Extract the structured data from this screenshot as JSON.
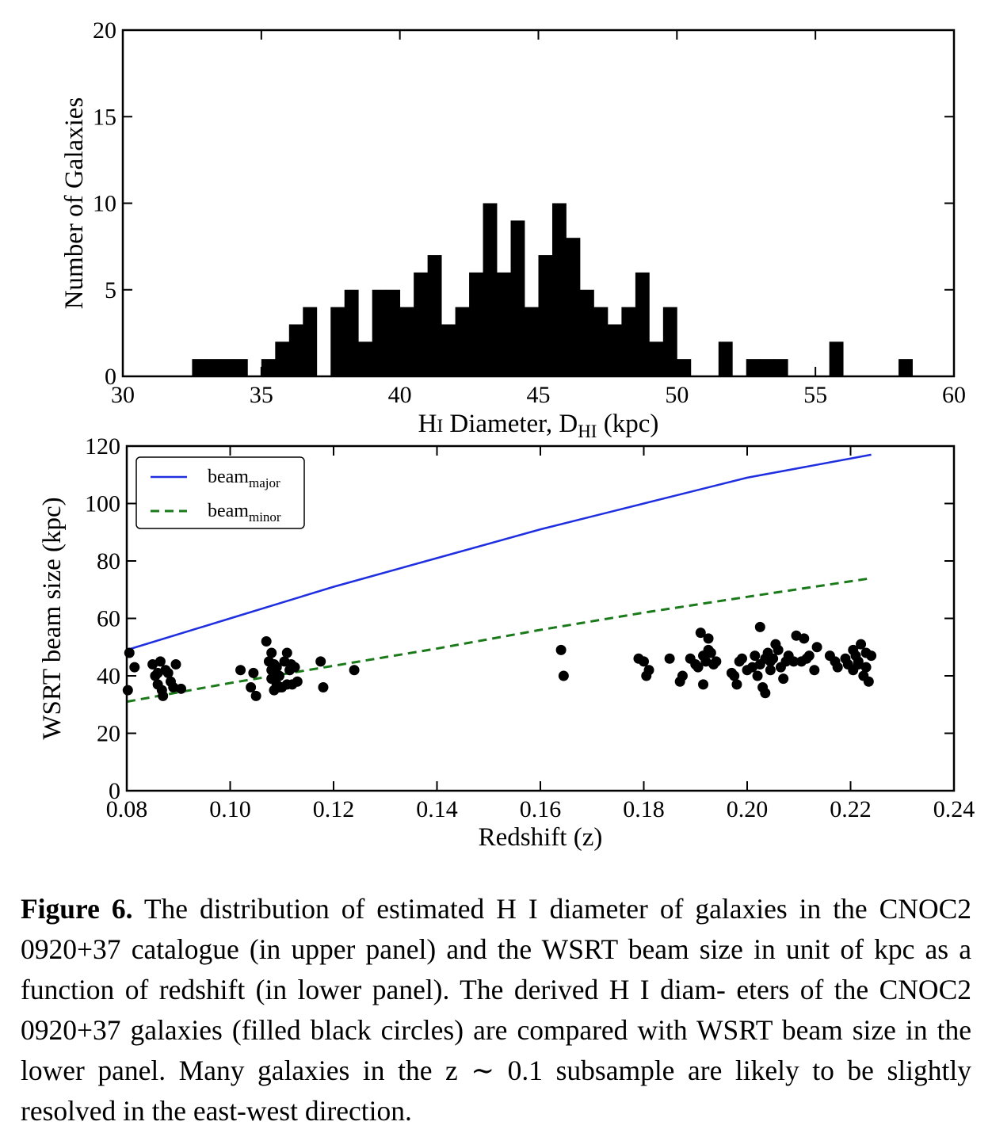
{
  "chart_data": [
    {
      "type": "bar",
      "panel": "upper",
      "xlabel_parts": [
        "H",
        "I",
        " Diameter, D",
        "HI",
        " (kpc)"
      ],
      "xlabel": "H I Diameter, DHI (kpc)",
      "ylabel": "Number of Galaxies",
      "xlim": [
        30,
        60
      ],
      "ylim": [
        0,
        20
      ],
      "xticks": [
        30,
        35,
        40,
        45,
        50,
        55,
        60
      ],
      "yticks": [
        0,
        5,
        10,
        15,
        20
      ],
      "bin_width": 0.5,
      "bin_start": 32.5,
      "counts": [
        1,
        1,
        1,
        1,
        0,
        1,
        2,
        3,
        4,
        0,
        4,
        5,
        2,
        5,
        5,
        4,
        6,
        7,
        3,
        4,
        6,
        10,
        6,
        9,
        4,
        7,
        10,
        8,
        5,
        4,
        3,
        4,
        6,
        2,
        4,
        1,
        0,
        0,
        2,
        0,
        1,
        1,
        1,
        0,
        0,
        0,
        2,
        0,
        0,
        0,
        0,
        1
      ],
      "color": "#000000"
    },
    {
      "type": "scatter",
      "panel": "lower",
      "xlabel": "Redshift (z)",
      "ylabel": "WSRT beam size (kpc)",
      "xlim": [
        0.08,
        0.24
      ],
      "ylim": [
        0,
        120
      ],
      "xticks": [
        "0.08",
        "0.10",
        "0.12",
        "0.14",
        "0.16",
        "0.18",
        "0.20",
        "0.22",
        "0.24"
      ],
      "yticks": [
        0,
        20,
        40,
        60,
        80,
        100,
        120
      ],
      "legend_position": "top-left",
      "lines": [
        {
          "name_base": "beam",
          "name_sub": "major",
          "style": "solid",
          "color": "#1f2fe0",
          "x": [
            0.08,
            0.1,
            0.12,
            0.14,
            0.16,
            0.18,
            0.2,
            0.224
          ],
          "y": [
            49,
            60,
            71,
            81,
            91,
            100,
            109,
            117
          ]
        },
        {
          "name_base": "beam",
          "name_sub": "minor",
          "style": "dashed",
          "color": "#1a7a1a",
          "x": [
            0.08,
            0.1,
            0.12,
            0.14,
            0.16,
            0.18,
            0.2,
            0.224
          ],
          "y": [
            31,
            37.5,
            43.5,
            49.5,
            56,
            62,
            67.5,
            74
          ]
        }
      ],
      "points": [
        [
          0.0805,
          48
        ],
        [
          0.0802,
          35
        ],
        [
          0.0815,
          43
        ],
        [
          0.085,
          44
        ],
        [
          0.0855,
          40
        ],
        [
          0.086,
          37
        ],
        [
          0.0865,
          45
        ],
        [
          0.0868,
          35
        ],
        [
          0.087,
          33
        ],
        [
          0.0875,
          42
        ],
        [
          0.088,
          41
        ],
        [
          0.0885,
          38
        ],
        [
          0.0895,
          44
        ],
        [
          0.089,
          36
        ],
        [
          0.0905,
          35.5
        ],
        [
          0.086,
          41
        ],
        [
          0.102,
          42
        ],
        [
          0.104,
          36
        ],
        [
          0.1045,
          41
        ],
        [
          0.105,
          33
        ],
        [
          0.107,
          52
        ],
        [
          0.1075,
          45
        ],
        [
          0.108,
          48
        ],
        [
          0.108,
          39
        ],
        [
          0.1085,
          35
        ],
        [
          0.108,
          42
        ],
        [
          0.109,
          43
        ],
        [
          0.109,
          37
        ],
        [
          0.1095,
          40
        ],
        [
          0.11,
          36
        ],
        [
          0.1105,
          45
        ],
        [
          0.111,
          37
        ],
        [
          0.111,
          48
        ],
        [
          0.1115,
          42
        ],
        [
          0.1118,
          44
        ],
        [
          0.112,
          37
        ],
        [
          0.1125,
          43
        ],
        [
          0.113,
          38
        ],
        [
          0.1085,
          44
        ],
        [
          0.1095,
          36
        ],
        [
          0.1175,
          45
        ],
        [
          0.118,
          36
        ],
        [
          0.124,
          42
        ],
        [
          0.164,
          49
        ],
        [
          0.1645,
          40
        ],
        [
          0.179,
          46
        ],
        [
          0.18,
          45
        ],
        [
          0.1805,
          40
        ],
        [
          0.181,
          42
        ],
        [
          0.185,
          46
        ],
        [
          0.187,
          38
        ],
        [
          0.1875,
          40
        ],
        [
          0.189,
          46
        ],
        [
          0.19,
          44
        ],
        [
          0.191,
          55
        ],
        [
          0.1915,
          47
        ],
        [
          0.192,
          45
        ],
        [
          0.1925,
          53
        ],
        [
          0.1915,
          37
        ],
        [
          0.193,
          48
        ],
        [
          0.1935,
          44
        ],
        [
          0.194,
          45
        ],
        [
          0.1905,
          43
        ],
        [
          0.1925,
          49
        ],
        [
          0.197,
          41
        ],
        [
          0.1975,
          40
        ],
        [
          0.198,
          37
        ],
        [
          0.1985,
          45
        ],
        [
          0.199,
          46
        ],
        [
          0.2,
          42
        ],
        [
          0.201,
          43
        ],
        [
          0.2015,
          47
        ],
        [
          0.202,
          40
        ],
        [
          0.2025,
          44
        ],
        [
          0.203,
          36
        ],
        [
          0.2035,
          46
        ],
        [
          0.204,
          48
        ],
        [
          0.2045,
          42
        ],
        [
          0.205,
          46
        ],
        [
          0.2055,
          51
        ],
        [
          0.206,
          49
        ],
        [
          0.2065,
          43
        ],
        [
          0.207,
          39
        ],
        [
          0.2075,
          45
        ],
        [
          0.208,
          47
        ],
        [
          0.209,
          45
        ],
        [
          0.2095,
          54
        ],
        [
          0.2105,
          45
        ],
        [
          0.211,
          53
        ],
        [
          0.2115,
          46
        ],
        [
          0.212,
          47
        ],
        [
          0.213,
          42
        ],
        [
          0.2135,
          50
        ],
        [
          0.2035,
          34
        ],
        [
          0.2025,
          57
        ],
        [
          0.2045,
          45
        ],
        [
          0.216,
          47
        ],
        [
          0.217,
          45
        ],
        [
          0.2175,
          43
        ],
        [
          0.219,
          46
        ],
        [
          0.2195,
          44
        ],
        [
          0.2205,
          49
        ],
        [
          0.2205,
          42
        ],
        [
          0.221,
          47
        ],
        [
          0.2215,
          45
        ],
        [
          0.222,
          51
        ],
        [
          0.2225,
          40
        ],
        [
          0.223,
          48
        ],
        [
          0.223,
          43
        ],
        [
          0.2235,
          38
        ],
        [
          0.224,
          47
        ],
        [
          0.2215,
          44
        ]
      ]
    }
  ],
  "caption": {
    "label": "Figure 6.",
    "lines": [
      "The distribution of estimated H I diameter of galaxies in the",
      "CNOC2 0920+37 catalogue (in upper panel) and the WSRT beam size in",
      "unit of kpc as a function of redshift (in lower panel). The derived H I diam-",
      "eters of the CNOC2 0920+37 galaxies (filled black circles) are compared",
      "with WSRT beam size in the lower panel. Many galaxies in the z ∼ 0.1",
      "subsample are likely to be slightly resolved in the east-west direction."
    ]
  }
}
